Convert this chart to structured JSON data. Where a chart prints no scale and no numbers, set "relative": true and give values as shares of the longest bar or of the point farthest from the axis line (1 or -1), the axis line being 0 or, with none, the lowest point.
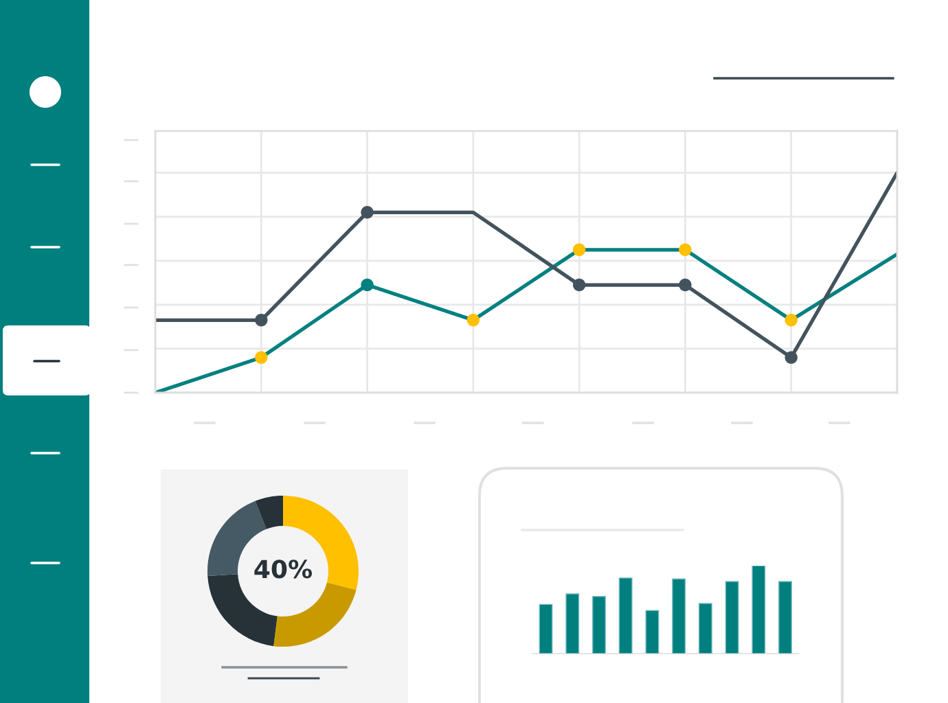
{
  "chart_data": [
    {
      "type": "line",
      "categories": [
        null,
        null,
        null,
        null,
        null,
        null,
        null,
        null
      ],
      "relative": true,
      "grid": true,
      "marker": "circle",
      "series": [
        {
          "color": "#00807f",
          "values": [
            0,
            0.16,
            0.49,
            0.33,
            0.65,
            0.65,
            0.33,
            0.63
          ],
          "colors": [
            null,
            "#ffc000",
            "#00807f",
            "#ffc000",
            "#ffc000",
            "#ffc000",
            "#ffc000",
            null
          ]
        },
        {
          "color": "#43535d",
          "values": [
            0.33,
            0.33,
            0.82,
            0.82,
            0.49,
            0.49,
            0.16,
            1
          ],
          "colors": [
            null,
            "#43535d",
            "#43535d",
            null,
            "#43535d",
            "#43535d",
            "#43535d",
            null
          ]
        }
      ]
    },
    {
      "type": "donut",
      "categories": [
        null,
        null,
        null,
        null,
        null
      ],
      "values": [
        29,
        23,
        22,
        20,
        6
      ],
      "colors": [
        "#ffc000",
        "#c99a00",
        "#263238",
        "#455a64",
        "#263238"
      ],
      "annotations": [
        "40%"
      ]
    },
    {
      "type": "bar",
      "categories": [
        null,
        null,
        null,
        null,
        null,
        null,
        null,
        null,
        null,
        null
      ],
      "values": [
        0.56,
        0.68,
        0.65,
        0.86,
        0.49,
        0.85,
        0.57,
        0.82,
        1,
        0.82
      ],
      "color": "#007f7f",
      "relative": true
    }
  ]
}
